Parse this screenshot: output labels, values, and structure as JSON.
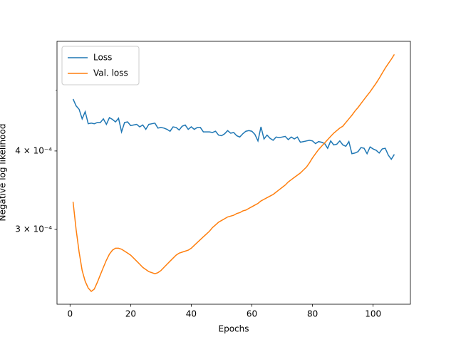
{
  "chart_data": {
    "type": "line",
    "xlabel": "Epochs",
    "ylabel": "Negative log likelihood",
    "xlim": [
      -4.3,
      112.3
    ],
    "xticks": [
      0,
      20,
      40,
      60,
      80,
      100
    ],
    "ylim": [
      0.000228,
      0.000598
    ],
    "log_y": true,
    "yticks": [
      {
        "value": 0.0003,
        "label": "3 × 10⁻⁴"
      },
      {
        "value": 0.0004,
        "label": "4 × 10⁻⁴"
      }
    ],
    "yminor_ticks": [
      0.0005
    ],
    "legend": "upper left",
    "x": [
      1,
      2,
      3,
      4,
      5,
      6,
      7,
      8,
      9,
      10,
      11,
      12,
      13,
      14,
      15,
      16,
      17,
      18,
      19,
      20,
      21,
      22,
      23,
      24,
      25,
      26,
      27,
      28,
      29,
      30,
      31,
      32,
      33,
      34,
      35,
      36,
      37,
      38,
      39,
      40,
      41,
      42,
      43,
      44,
      45,
      46,
      47,
      48,
      49,
      50,
      51,
      52,
      53,
      54,
      55,
      56,
      57,
      58,
      59,
      60,
      61,
      62,
      63,
      64,
      65,
      66,
      67,
      68,
      69,
      70,
      71,
      72,
      73,
      74,
      75,
      76,
      77,
      78,
      79,
      80,
      81,
      82,
      83,
      84,
      85,
      86,
      87,
      88,
      89,
      90,
      91,
      92,
      93,
      94,
      95,
      96,
      97,
      98,
      99,
      100,
      101,
      102,
      103,
      104,
      105,
      106,
      107
    ],
    "series": [
      {
        "name": "Loss",
        "color": "#1f77b4",
        "values": [
          0.000484,
          0.000472,
          0.000466,
          0.00045,
          0.000462,
          0.000442,
          0.000443,
          0.000442,
          0.000444,
          0.000444,
          0.00045,
          0.000441,
          0.000452,
          0.000449,
          0.000445,
          0.000451,
          0.000429,
          0.000444,
          0.000445,
          0.000439,
          0.00044,
          0.000441,
          0.000437,
          0.00044,
          0.000433,
          0.000441,
          0.000442,
          0.000443,
          0.000435,
          0.000436,
          0.000435,
          0.000433,
          0.00043,
          0.000437,
          0.000436,
          0.000432,
          0.000438,
          0.00044,
          0.000433,
          0.000437,
          0.000433,
          0.000436,
          0.000436,
          0.000429,
          0.000429,
          0.000429,
          0.000428,
          0.00043,
          0.000424,
          0.000423,
          0.000426,
          0.000431,
          0.000427,
          0.000428,
          0.000423,
          0.000421,
          0.000426,
          0.00043,
          0.000431,
          0.00043,
          0.000425,
          0.000415,
          0.000437,
          0.000418,
          0.000424,
          0.000419,
          0.000416,
          0.000421,
          0.00042,
          0.000421,
          0.000422,
          0.000417,
          0.000421,
          0.000418,
          0.000421,
          0.000413,
          0.000414,
          0.000415,
          0.000416,
          0.000415,
          0.000411,
          0.000414,
          0.000413,
          0.000411,
          0.000404,
          0.000415,
          0.000409,
          0.00041,
          0.000415,
          0.000409,
          0.000407,
          0.000414,
          0.000396,
          0.000397,
          0.000399,
          0.000405,
          0.000404,
          0.000396,
          0.000406,
          0.000403,
          0.000401,
          0.000397,
          0.000403,
          0.000404,
          0.000394,
          0.000388,
          0.000395
        ]
      },
      {
        "name": "Val. loss",
        "color": "#ff7f0e",
        "values": [
          0.000332,
          0.0003,
          0.000276,
          0.000258,
          0.000248,
          0.000242,
          0.000239,
          0.000241,
          0.000247,
          0.000254,
          0.000261,
          0.000268,
          0.000274,
          0.000278,
          0.00028,
          0.00028,
          0.000279,
          0.000277,
          0.000275,
          0.000273,
          0.00027,
          0.000267,
          0.000264,
          0.000261,
          0.000259,
          0.000257,
          0.000256,
          0.000255,
          0.000256,
          0.000258,
          0.000261,
          0.000264,
          0.000267,
          0.00027,
          0.000273,
          0.000275,
          0.000276,
          0.000277,
          0.000278,
          0.00028,
          0.000283,
          0.000286,
          0.000289,
          0.000292,
          0.000295,
          0.000298,
          0.000302,
          0.000305,
          0.000308,
          0.00031,
          0.000312,
          0.000314,
          0.000315,
          0.000316,
          0.000318,
          0.000319,
          0.000321,
          0.000322,
          0.000324,
          0.000326,
          0.000328,
          0.00033,
          0.000333,
          0.000335,
          0.000337,
          0.000339,
          0.000341,
          0.000344,
          0.000347,
          0.00035,
          0.000353,
          0.000357,
          0.00036,
          0.000363,
          0.000366,
          0.000369,
          0.000373,
          0.000377,
          0.000383,
          0.00039,
          0.000396,
          0.000402,
          0.000407,
          0.000412,
          0.000417,
          0.000422,
          0.000427,
          0.000431,
          0.000435,
          0.000438,
          0.000444,
          0.00045,
          0.000456,
          0.000463,
          0.000469,
          0.000476,
          0.000483,
          0.00049,
          0.000497,
          0.000505,
          0.000513,
          0.000522,
          0.000532,
          0.000542,
          0.000551,
          0.00056,
          0.00057
        ]
      }
    ]
  }
}
